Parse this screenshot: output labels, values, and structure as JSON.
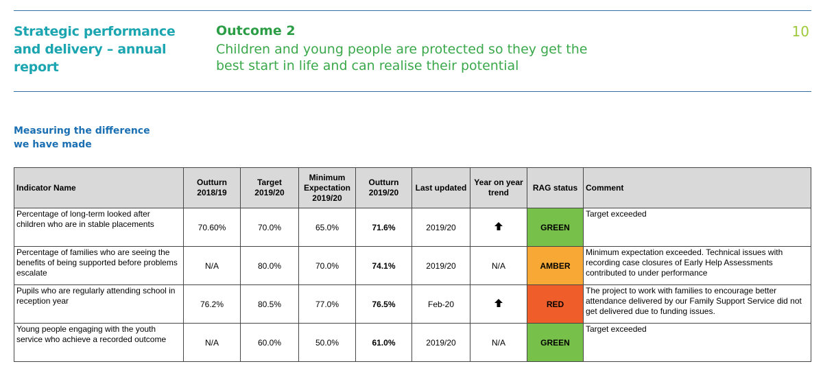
{
  "header": {
    "report_title": "Strategic performance and delivery – annual report",
    "outcome_heading": "Outcome 2",
    "outcome_description": "Children and young people are protected so they get the best start in life and can realise their potential",
    "page_number": "10"
  },
  "section": {
    "title": "Measuring the difference we have made"
  },
  "table": {
    "headers": {
      "indicator": "Indicator Name",
      "outturn_prev": "Outturn 2018/19",
      "target": "Target 2019/20",
      "minimum": "Minimum Expectation 2019/20",
      "outturn": "Outturn 2019/20",
      "last_updated": "Last updated",
      "trend": "Year on year trend",
      "rag": "RAG status",
      "comment": "Comment"
    },
    "rows": [
      {
        "indicator": "Percentage of long-term looked after children who are in stable placements",
        "outturn_prev": "70.60%",
        "target": "70.0%",
        "minimum": "65.0%",
        "outturn": "71.6%",
        "last_updated": "2019/20",
        "trend": "",
        "trend_icon": "arrow-up",
        "rag": "GREEN",
        "rag_color": "#77c04a",
        "comment": "Target exceeded"
      },
      {
        "indicator": "Percentage of families who are seeing the benefits of being supported before problems escalate",
        "outturn_prev": "N/A",
        "target": "80.0%",
        "minimum": "70.0%",
        "outturn": "74.1%",
        "last_updated": "2019/20",
        "trend": "N/A",
        "trend_icon": "",
        "rag": "AMBER",
        "rag_color": "#f8a834",
        "comment": "Minimum expectation exceeded.  Technical issues with recording case closures of Early Help Assessments contributed to under performance"
      },
      {
        "indicator": "Pupils who are regularly attending school in reception year",
        "outturn_prev": "76.2%",
        "target": "80.5%",
        "minimum": "77.0%",
        "outturn": "76.5%",
        "last_updated": "Feb-20",
        "trend": "",
        "trend_icon": "arrow-up",
        "rag": "RED",
        "rag_color": "#ef5d2a",
        "comment": "The project to work with families to encourage better attendance delivered by our Family Support Service did not get delivered due to funding issues."
      },
      {
        "indicator": "Young people engaging with the youth service who achieve a recorded outcome",
        "outturn_prev": "N/A",
        "target": "60.0%",
        "minimum": "50.0%",
        "outturn": "61.0%",
        "last_updated": "2019/20",
        "trend": "N/A",
        "trend_icon": "",
        "rag": "GREEN",
        "rag_color": "#77c04a",
        "comment": "Target exceeded"
      }
    ]
  }
}
